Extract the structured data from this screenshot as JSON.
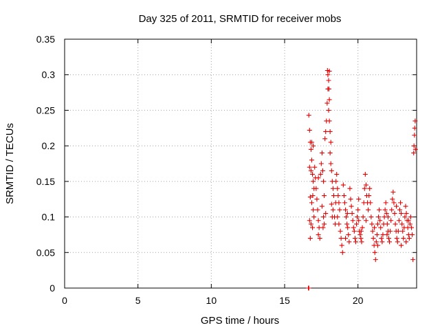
{
  "chart_data": {
    "type": "scatter",
    "title": "Day 325 of 2011, SRMTID for receiver mobs",
    "xlabel": "GPS time / hours",
    "ylabel": "SRMTID / TECUs",
    "xlim": [
      0,
      24
    ],
    "ylim": [
      0,
      0.35
    ],
    "x_ticks": [
      0,
      5,
      10,
      15,
      20
    ],
    "y_ticks": [
      0,
      0.05,
      0.1,
      0.15,
      0.2,
      0.25,
      0.3,
      0.35
    ],
    "x_tick_labels": [
      "0",
      "5",
      "10",
      "15",
      "20"
    ],
    "y_tick_labels": [
      "0",
      "0.05",
      "0.1",
      "0.15",
      "0.2",
      "0.25",
      "0.3",
      "0.35"
    ],
    "grid": true,
    "marker": "+",
    "colors": {
      "series": "#e00000",
      "grid": "#a0a0a0",
      "axes": "#000000"
    },
    "series": [
      {
        "name": "mobs",
        "points": [
          [
            16.62,
            0.0
          ],
          [
            16.65,
            0.0
          ],
          [
            16.65,
            0.243
          ],
          [
            16.7,
            0.222
          ],
          [
            16.75,
            0.205
          ],
          [
            16.8,
            0.195
          ],
          [
            16.85,
            0.18
          ],
          [
            16.7,
            0.17
          ],
          [
            16.8,
            0.165
          ],
          [
            16.9,
            0.16
          ],
          [
            16.95,
            0.15
          ],
          [
            17.0,
            0.14
          ],
          [
            16.75,
            0.128
          ],
          [
            16.85,
            0.12
          ],
          [
            16.95,
            0.11
          ],
          [
            17.0,
            0.1
          ],
          [
            16.7,
            0.095
          ],
          [
            16.8,
            0.09
          ],
          [
            16.9,
            0.085
          ],
          [
            16.75,
            0.07
          ],
          [
            16.85,
            0.205
          ],
          [
            16.95,
            0.2
          ],
          [
            17.05,
            0.17
          ],
          [
            17.1,
            0.155
          ],
          [
            17.15,
            0.14
          ],
          [
            17.2,
            0.125
          ],
          [
            17.25,
            0.11
          ],
          [
            17.3,
            0.095
          ],
          [
            17.35,
            0.085
          ],
          [
            17.3,
            0.075
          ],
          [
            17.4,
            0.07
          ],
          [
            17.45,
            0.16
          ],
          [
            17.5,
            0.175
          ],
          [
            17.55,
            0.19
          ],
          [
            17.6,
            0.165
          ],
          [
            17.65,
            0.15
          ],
          [
            17.7,
            0.13
          ],
          [
            17.55,
            0.115
          ],
          [
            17.65,
            0.1
          ],
          [
            17.7,
            0.09
          ],
          [
            17.8,
            0.105
          ],
          [
            17.75,
            0.21
          ],
          [
            17.8,
            0.22
          ],
          [
            17.85,
            0.235
          ],
          [
            17.9,
            0.26
          ],
          [
            17.95,
            0.28
          ],
          [
            17.92,
            0.306
          ],
          [
            18.05,
            0.305
          ],
          [
            17.95,
            0.3
          ],
          [
            18.0,
            0.292
          ],
          [
            18.02,
            0.28
          ],
          [
            18.05,
            0.265
          ],
          [
            18.0,
            0.25
          ],
          [
            18.05,
            0.235
          ],
          [
            18.1,
            0.22
          ],
          [
            18.15,
            0.205
          ],
          [
            18.1,
            0.19
          ],
          [
            18.15,
            0.175
          ],
          [
            18.2,
            0.165
          ],
          [
            18.25,
            0.15
          ],
          [
            18.3,
            0.14
          ],
          [
            18.35,
            0.13
          ],
          [
            18.2,
            0.118
          ],
          [
            18.3,
            0.11
          ],
          [
            18.4,
            0.1
          ],
          [
            18.45,
            0.09
          ],
          [
            18.5,
            0.15
          ],
          [
            18.55,
            0.16
          ],
          [
            18.6,
            0.14
          ],
          [
            18.65,
            0.13
          ],
          [
            18.7,
            0.12
          ],
          [
            18.75,
            0.11
          ],
          [
            18.6,
            0.1
          ],
          [
            18.7,
            0.09
          ],
          [
            18.8,
            0.08
          ],
          [
            18.85,
            0.07
          ],
          [
            18.9,
            0.06
          ],
          [
            18.95,
            0.05
          ],
          [
            19.0,
            0.145
          ],
          [
            19.05,
            0.13
          ],
          [
            19.1,
            0.12
          ],
          [
            19.15,
            0.11
          ],
          [
            19.2,
            0.1
          ],
          [
            19.25,
            0.09
          ],
          [
            19.3,
            0.085
          ],
          [
            19.35,
            0.075
          ],
          [
            19.4,
            0.065
          ],
          [
            19.45,
            0.14
          ],
          [
            19.5,
            0.125
          ],
          [
            19.55,
            0.115
          ],
          [
            19.6,
            0.105
          ],
          [
            19.65,
            0.095
          ],
          [
            19.7,
            0.085
          ],
          [
            19.75,
            0.08
          ],
          [
            19.8,
            0.07
          ],
          [
            19.85,
            0.065
          ],
          [
            19.9,
            0.09
          ],
          [
            19.95,
            0.1
          ],
          [
            20.0,
            0.11
          ],
          [
            20.05,
            0.095
          ],
          [
            20.1,
            0.08
          ],
          [
            20.15,
            0.075
          ],
          [
            20.2,
            0.07
          ],
          [
            20.25,
            0.065
          ],
          [
            20.3,
            0.085
          ],
          [
            20.35,
            0.1
          ],
          [
            20.4,
            0.12
          ],
          [
            20.45,
            0.14
          ],
          [
            20.5,
            0.16
          ],
          [
            20.55,
            0.145
          ],
          [
            20.6,
            0.13
          ],
          [
            20.65,
            0.12
          ],
          [
            20.7,
            0.11
          ],
          [
            20.75,
            0.13
          ],
          [
            20.8,
            0.14
          ],
          [
            20.85,
            0.12
          ],
          [
            20.9,
            0.1
          ],
          [
            20.95,
            0.09
          ],
          [
            21.0,
            0.08
          ],
          [
            21.05,
            0.07
          ],
          [
            21.1,
            0.06
          ],
          [
            21.15,
            0.05
          ],
          [
            21.2,
            0.04
          ],
          [
            21.25,
            0.065
          ],
          [
            21.3,
            0.075
          ],
          [
            21.35,
            0.09
          ],
          [
            21.4,
            0.1
          ],
          [
            21.45,
            0.11
          ],
          [
            21.5,
            0.095
          ],
          [
            21.55,
            0.085
          ],
          [
            21.6,
            0.07
          ],
          [
            21.65,
            0.065
          ],
          [
            21.7,
            0.075
          ],
          [
            21.75,
            0.09
          ],
          [
            21.8,
            0.1
          ],
          [
            21.85,
            0.11
          ],
          [
            21.9,
            0.12
          ],
          [
            21.95,
            0.105
          ],
          [
            22.0,
            0.09
          ],
          [
            22.05,
            0.08
          ],
          [
            22.1,
            0.07
          ],
          [
            22.15,
            0.065
          ],
          [
            22.2,
            0.08
          ],
          [
            22.25,
            0.095
          ],
          [
            22.3,
            0.11
          ],
          [
            22.35,
            0.125
          ],
          [
            22.4,
            0.135
          ],
          [
            22.45,
            0.12
          ],
          [
            22.5,
            0.105
          ],
          [
            22.55,
            0.09
          ],
          [
            22.6,
            0.08
          ],
          [
            22.65,
            0.07
          ],
          [
            22.7,
            0.065
          ],
          [
            22.75,
            0.08
          ],
          [
            22.8,
            0.095
          ],
          [
            22.85,
            0.11
          ],
          [
            22.9,
            0.12
          ],
          [
            22.95,
            0.105
          ],
          [
            23.0,
            0.09
          ],
          [
            23.05,
            0.08
          ],
          [
            23.1,
            0.07
          ],
          [
            23.15,
            0.085
          ],
          [
            23.2,
            0.1
          ],
          [
            23.25,
            0.115
          ],
          [
            23.3,
            0.105
          ],
          [
            23.35,
            0.095
          ],
          [
            23.4,
            0.085
          ],
          [
            23.45,
            0.075
          ],
          [
            23.5,
            0.07
          ],
          [
            23.55,
            0.09
          ],
          [
            23.6,
            0.1
          ],
          [
            23.65,
            0.085
          ],
          [
            23.7,
            0.075
          ],
          [
            23.75,
            0.04
          ],
          [
            23.8,
            0.19
          ],
          [
            23.82,
            0.2
          ],
          [
            23.85,
            0.215
          ],
          [
            23.87,
            0.225
          ],
          [
            23.9,
            0.235
          ],
          [
            23.92,
            0.195
          ],
          [
            17.3,
            0.155
          ],
          [
            18.25,
            0.1
          ],
          [
            19.15,
            0.07
          ],
          [
            20.05,
            0.125
          ],
          [
            20.55,
            0.095
          ],
          [
            21.35,
            0.06
          ],
          [
            22.05,
            0.1
          ],
          [
            22.95,
            0.06
          ],
          [
            23.45,
            0.095
          ],
          [
            16.92,
            0.13
          ],
          [
            17.62,
            0.085
          ],
          [
            18.48,
            0.12
          ],
          [
            19.28,
            0.105
          ],
          [
            20.22,
            0.08
          ],
          [
            21.12,
            0.085
          ],
          [
            21.98,
            0.075
          ],
          [
            22.62,
            0.115
          ],
          [
            23.28,
            0.065
          ]
        ]
      }
    ]
  }
}
